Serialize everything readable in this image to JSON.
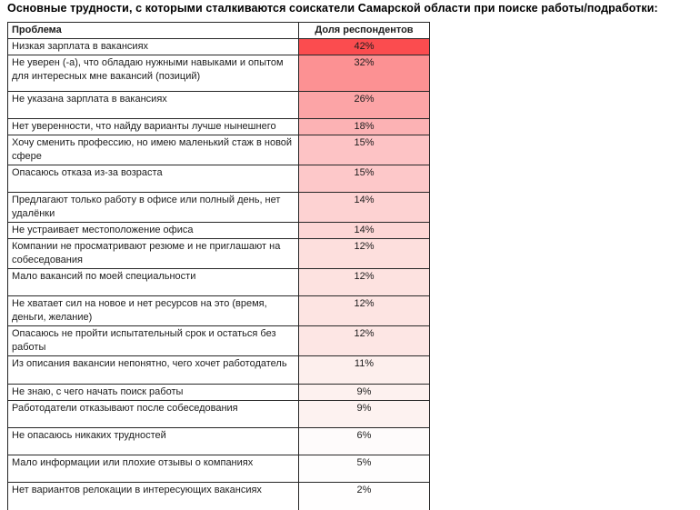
{
  "title": "Основные трудности, с которыми сталкиваются соискатели Самарской области при поиске работы/подработки:",
  "table": {
    "columns": {
      "problem": "Проблема",
      "value": "Доля респондентов"
    },
    "rows": [
      {
        "problem": "Низкая зарплата в вакансиях",
        "value": "42%",
        "color": "#FB4C4F",
        "min_h": 16
      },
      {
        "problem": "Не уверен (-а), что обладаю нужными навыками и опытом для интересных мне вакансий (позиций)",
        "value": "32%",
        "color": "#FC9193",
        "min_h": 40
      },
      {
        "problem": "Не указана зарплата в вакансиях",
        "value": "26%",
        "color": "#FCA4A6",
        "min_h": 30
      },
      {
        "problem": "Нет уверенности, что найду варианты лучше нынешнего",
        "value": "18%",
        "color": "#FCB2B4",
        "min_h": 17
      },
      {
        "problem": "Хочу сменить профессию, но имею маленький стаж в новой сфере",
        "value": "15%",
        "color": "#FDC3C5",
        "min_h": 33
      },
      {
        "problem": "Опасаюсь отказа из-за возраста",
        "value": "15%",
        "color": "#FDC8C9",
        "min_h": 30
      },
      {
        "problem": "Предлагают только работу в офисе или полный день, нет удалёнки",
        "value": "14%",
        "color": "#FDD2D2",
        "min_h": 32
      },
      {
        "problem": "Не устраивает местоположение офиса",
        "value": "14%",
        "color": "#FDD6D5",
        "min_h": 16
      },
      {
        "problem": "Компании не просматривают резюме и не приглашают на собеседования",
        "value": "12%",
        "color": "#FDDFDD",
        "min_h": 32
      },
      {
        "problem": "Мало вакансий по моей специальности",
        "value": "12%",
        "color": "#FDE2E0",
        "min_h": 30
      },
      {
        "problem": "Не хватает сил на новое и нет ресурсов на это (время, деньги, желание)",
        "value": "12%",
        "color": "#FDE4E2",
        "min_h": 32
      },
      {
        "problem": "Опасаюсь не пройти испытательный срок и остаться без работы",
        "value": "12%",
        "color": "#FDE6E4",
        "min_h": 32
      },
      {
        "problem": "Из описания вакансии непонятно, чего хочет работодатель",
        "value": "11%",
        "color": "#FDEFED",
        "min_h": 31
      },
      {
        "problem": "Не знаю, с чего начать поиск работы",
        "value": "9%",
        "color": "#FDF1EF",
        "min_h": 17
      },
      {
        "problem": "Работодатели отказывают после собеседования",
        "value": "9%",
        "color": "#FDF2F0",
        "min_h": 30
      },
      {
        "problem": "Не опасаюсь никаких трудностей",
        "value": "6%",
        "color": "#FEFBFB",
        "min_h": 30
      },
      {
        "problem": "Мало информации или плохие отзывы о компаниях",
        "value": "5%",
        "color": "#FEFDFD",
        "min_h": 30
      },
      {
        "problem": "Нет вариантов релокации в интересующих вакансиях",
        "value": "2%",
        "color": "#FFFEFE",
        "min_h": 33
      }
    ]
  },
  "heatmap": {
    "max_color": "#FB4C4F",
    "min_color": "#FFFFFF",
    "max_value": 42,
    "min_value": 2
  },
  "chart_data": {
    "type": "table",
    "title": "Основные трудности, с которыми сталкиваются соискатели Самарской области при поиске работы/подработки:",
    "columns": [
      "Проблема",
      "Доля респондентов"
    ],
    "rows": [
      [
        "Низкая зарплата в вакансиях",
        42
      ],
      [
        "Не уверен (-а), что обладаю нужными навыками и опытом для интересных мне вакансий (позиций)",
        32
      ],
      [
        "Не указана зарплата в вакансиях",
        26
      ],
      [
        "Нет уверенности, что найду варианты лучше нынешнего",
        18
      ],
      [
        "Хочу сменить профессию, но имею маленький стаж в новой сфере",
        15
      ],
      [
        "Опасаюсь отказа из-за возраста",
        15
      ],
      [
        "Предлагают только работу в офисе или полный день, нет удалёнки",
        14
      ],
      [
        "Не устраивает местоположение офиса",
        14
      ],
      [
        "Компании не просматривают резюме и не приглашают на собеседования",
        12
      ],
      [
        "Мало вакансий по моей специальности",
        12
      ],
      [
        "Не хватает сил на новое и нет ресурсов на это (время, деньги, желание)",
        12
      ],
      [
        "Опасаюсь не пройти испытательный срок и остаться без работы",
        12
      ],
      [
        "Из описания вакансии непонятно, чего хочет работодатель",
        11
      ],
      [
        "Не знаю, с чего начать поиск работы",
        9
      ],
      [
        "Работодатели отказывают после собеседования",
        9
      ],
      [
        "Не опасаюсь никаких трудностей",
        6
      ],
      [
        "Мало информации или плохие отзывы о компаниях",
        5
      ],
      [
        "Нет вариантов релокации в интересующих вакансиях",
        2
      ]
    ],
    "values_unit": "%",
    "value_format": "percent, heatmap red(high)-to-white(low)",
    "legend": "none",
    "grid": "full black cell borders"
  }
}
